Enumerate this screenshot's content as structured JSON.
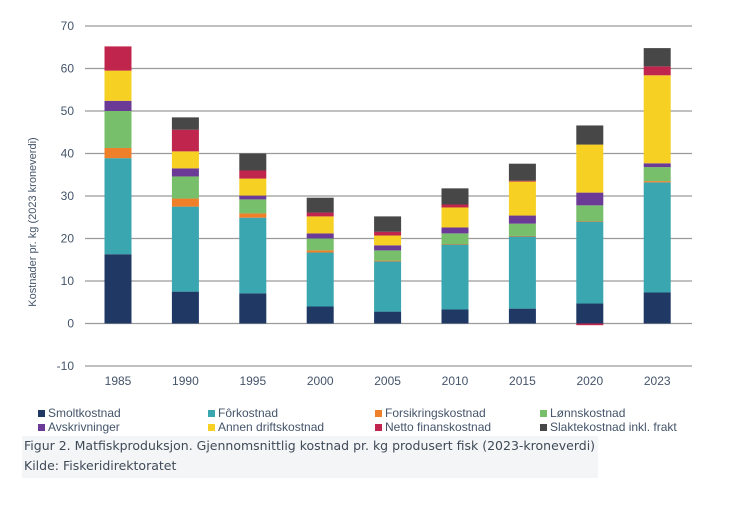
{
  "chart_data": {
    "type": "bar",
    "stacked": true,
    "title": "",
    "xlabel": "",
    "ylabel": "Kostnader pr. kg (2023 kroneverdi)",
    "ylim": [
      -10,
      70
    ],
    "yticks": [
      -10,
      0,
      10,
      20,
      30,
      40,
      50,
      60,
      70
    ],
    "grid": true,
    "legend_position": "bottom",
    "categories": [
      "1985",
      "1990",
      "1995",
      "2000",
      "2005",
      "2010",
      "2015",
      "2020",
      "2023"
    ],
    "series": [
      {
        "name": "Smoltkostnad",
        "color": "#1f3864",
        "values": [
          16.3,
          7.5,
          7.1,
          4.0,
          2.8,
          3.3,
          3.5,
          4.7,
          7.3
        ]
      },
      {
        "name": "Fôrkostnad",
        "color": "#3aa6b0",
        "values": [
          22.6,
          20.0,
          17.8,
          12.7,
          11.8,
          15.3,
          17.0,
          19.3,
          25.9
        ]
      },
      {
        "name": "Forsikringskostnad",
        "color": "#f07f2a",
        "values": [
          2.4,
          1.9,
          1.0,
          0.5,
          0.2,
          0.1,
          0.1,
          0.1,
          0.3
        ]
      },
      {
        "name": "Lønnskostnad",
        "color": "#78bf6b",
        "values": [
          8.7,
          5.2,
          3.3,
          2.8,
          2.4,
          2.5,
          2.9,
          3.7,
          3.3
        ]
      },
      {
        "name": "Avskrivninger",
        "color": "#6b3a96",
        "values": [
          2.4,
          1.9,
          0.9,
          1.2,
          1.2,
          1.4,
          1.9,
          3.0,
          0.9
        ]
      },
      {
        "name": "Annen driftskostnad",
        "color": "#f6d023",
        "values": [
          7.1,
          4.0,
          4.0,
          4.0,
          2.3,
          4.7,
          8.0,
          11.3,
          20.7
        ]
      },
      {
        "name": "Netto finanskostnad",
        "color": "#c0254e",
        "values": [
          5.7,
          5.1,
          1.9,
          0.9,
          0.9,
          0.7,
          0.2,
          -0.4,
          2.1
        ]
      },
      {
        "name": "Slaktekostnad inkl. frakt",
        "color": "#474747",
        "values": [
          0,
          2.9,
          4.0,
          3.5,
          3.6,
          3.8,
          4.0,
          4.5,
          4.3
        ]
      }
    ]
  },
  "caption": {
    "figure": "Figur 2. Matfiskproduksjon. Gjennomsnittlig kostnad pr. kg produsert fisk (2023-kroneverdi)",
    "source": "Kilde: Fiskeridirektoratet"
  }
}
